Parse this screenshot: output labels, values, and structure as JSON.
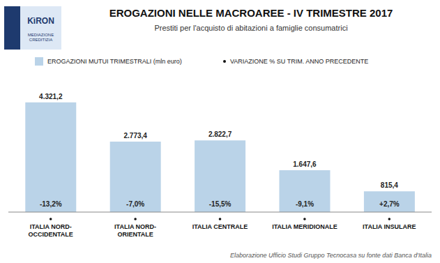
{
  "chart_data": {
    "type": "bar",
    "title": "EROGAZIONI NELLE MACROAREE - IV TRIMESTRE 2017",
    "subtitle": "Prestiti per l'acquisto di abitazioni a famiglie consumatrici",
    "categories": [
      "ITALIA NORD-\nOCCIDENTALE",
      "ITALIA NORD-\nORIENTALE",
      "ITALIA CENTRALE",
      "ITALIA MERIDIONALE",
      "ITALIA INSULARE"
    ],
    "series": [
      {
        "name": "EROGAZIONI MUTUI TRIMESTRALI (mln euro)",
        "color": "#bad3e8",
        "values": [
          4321.2,
          2773.4,
          2822.7,
          1647.6,
          815.4
        ],
        "value_labels": [
          "4.321,2",
          "2.773,4",
          "2.822,7",
          "1.647,6",
          "815,4"
        ]
      }
    ],
    "changes": {
      "name": "VARIAZIONE % SU TRIM. ANNO PRECEDENTE",
      "labels": [
        "-13,2%",
        "-7,0%",
        "-15,5%",
        "-9,1%",
        "+2,7%"
      ]
    },
    "annotations": [
      "Elaborazione Ufficio Studi Gruppo Tecnocasa su fonte dati Banca d'Italia",
      "KìRON",
      "MEDIAZIONE CREDITIZIA"
    ],
    "ylim": [
      0,
      5000
    ],
    "data_labels": true,
    "tick_labels": "x",
    "grid": false
  }
}
